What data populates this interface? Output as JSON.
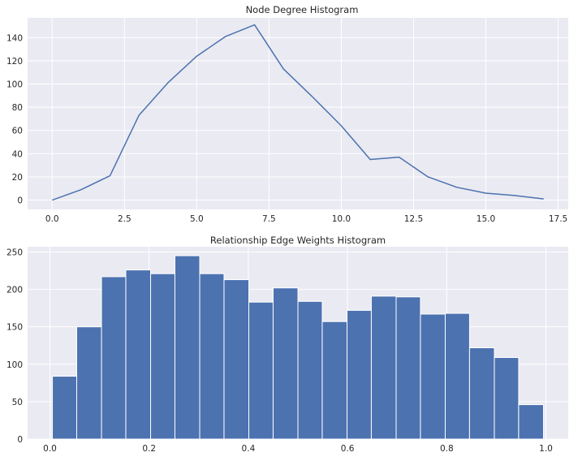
{
  "chart_data": [
    {
      "type": "line",
      "title": "Node Degree Histogram",
      "xlabel": "",
      "ylabel": "",
      "x": [
        0,
        1,
        2,
        3,
        4,
        5,
        6,
        7,
        8,
        9,
        10,
        11,
        12,
        13,
        14,
        15,
        16,
        17
      ],
      "series": [
        {
          "values": [
            0,
            9,
            21,
            73,
            101,
            124,
            141,
            151,
            113,
            89,
            64,
            35,
            37,
            20,
            11,
            6,
            4,
            1
          ]
        }
      ],
      "xlim": [
        -0.85,
        17.85
      ],
      "ylim": [
        -8,
        157
      ],
      "xticks": [
        0,
        2.5,
        5,
        7.5,
        10,
        12.5,
        15,
        17.5
      ],
      "xtick_labels": [
        "0.0",
        "2.5",
        "5.0",
        "7.5",
        "10.0",
        "12.5",
        "15.0",
        "17.5"
      ],
      "yticks": [
        0,
        20,
        40,
        60,
        80,
        100,
        120,
        140
      ],
      "ytick_labels": [
        "0",
        "20",
        "40",
        "60",
        "80",
        "100",
        "120",
        "140"
      ],
      "grid": true,
      "color": "#4c72b0"
    },
    {
      "type": "bar",
      "title": "Relationship Edge Weights Histogram",
      "xlabel": "",
      "ylabel": "",
      "bin_edges": [
        0.005,
        0.054,
        0.104,
        0.153,
        0.203,
        0.252,
        0.302,
        0.351,
        0.401,
        0.45,
        0.5,
        0.549,
        0.599,
        0.648,
        0.698,
        0.747,
        0.797,
        0.846,
        0.896,
        0.945,
        0.995
      ],
      "values": [
        84,
        150,
        217,
        226,
        221,
        245,
        221,
        213,
        183,
        202,
        184,
        157,
        172,
        191,
        190,
        167,
        168,
        122,
        109,
        46
      ],
      "xlim": [
        -0.045,
        1.045
      ],
      "ylim": [
        0,
        257
      ],
      "xticks": [
        0.0,
        0.2,
        0.4,
        0.6,
        0.8,
        1.0
      ],
      "xtick_labels": [
        "0.0",
        "0.2",
        "0.4",
        "0.6",
        "0.8",
        "1.0"
      ],
      "yticks": [
        0,
        50,
        100,
        150,
        200,
        250
      ],
      "ytick_labels": [
        "0",
        "50",
        "100",
        "150",
        "200",
        "250"
      ],
      "grid": true,
      "color": "#4c72b0"
    }
  ]
}
